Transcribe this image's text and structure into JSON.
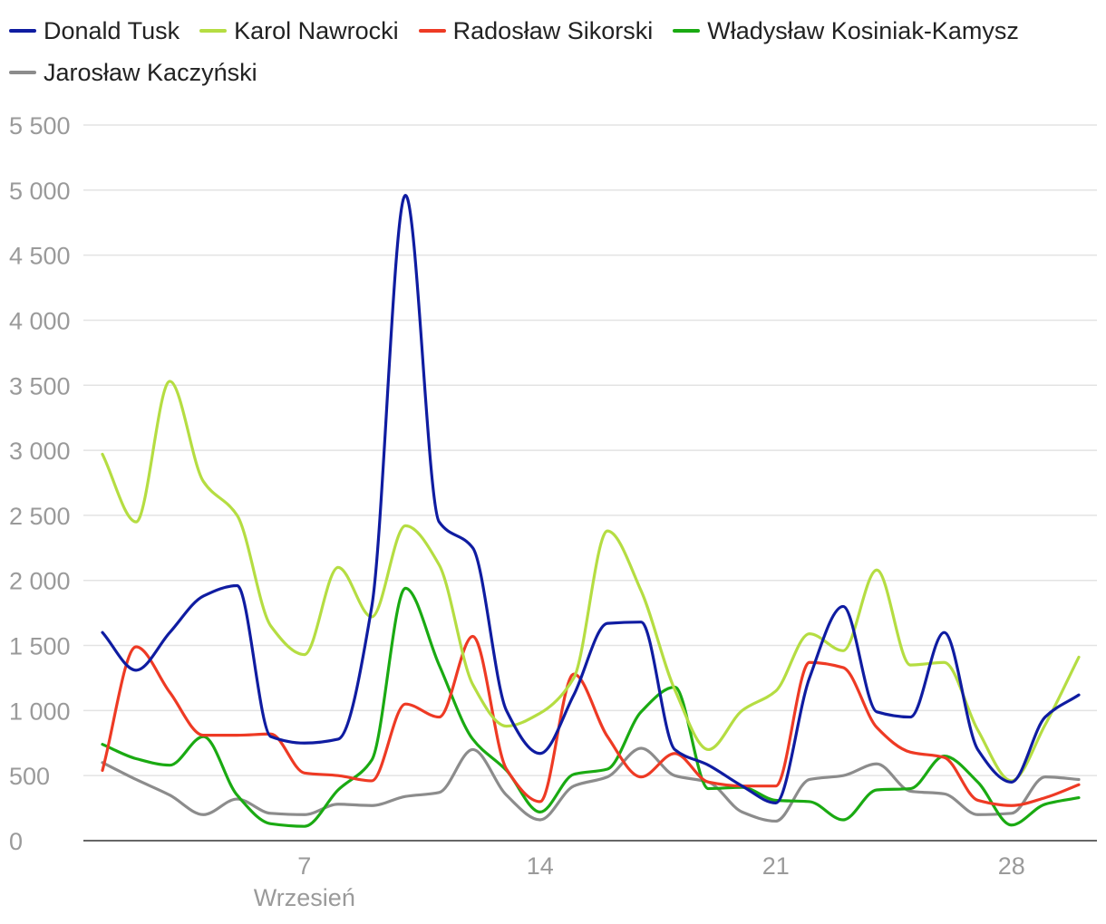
{
  "chart_data": {
    "type": "line",
    "title": "",
    "xlabel": "Wrzesień",
    "ylabel": "",
    "ylim": [
      0,
      5500
    ],
    "y_ticks": [
      0,
      500,
      1000,
      1500,
      2000,
      2500,
      3000,
      3500,
      4000,
      4500,
      5000,
      5500
    ],
    "y_tick_labels": [
      "0",
      "500",
      "1 000",
      "1 500",
      "2 000",
      "2 500",
      "3 000",
      "3 500",
      "4 000",
      "4 500",
      "5 000",
      "5 500"
    ],
    "x_range": [
      1,
      30
    ],
    "x_ticks": [
      7,
      14,
      21,
      28
    ],
    "x_tick_labels": [
      "7",
      "14",
      "21",
      "28"
    ],
    "x": [
      1,
      2,
      3,
      4,
      5,
      6,
      7,
      8,
      9,
      10,
      11,
      12,
      13,
      14,
      15,
      16,
      17,
      18,
      19,
      20,
      21,
      22,
      23,
      24,
      25,
      26,
      27,
      28,
      29,
      30
    ],
    "legend_position": "top-left",
    "grid": true,
    "series": [
      {
        "name": "Donald Tusk",
        "color": "#0f1ca1",
        "values": [
          1600,
          1310,
          1600,
          1880,
          1960,
          800,
          750,
          780,
          1800,
          4960,
          2450,
          2250,
          1000,
          670,
          1120,
          1670,
          1680,
          700,
          580,
          420,
          290,
          1250,
          1800,
          990,
          950,
          1600,
          700,
          450,
          950,
          1120
        ]
      },
      {
        "name": "Karol Nawrocki",
        "color": "#b5dd42",
        "values": [
          2970,
          2450,
          3530,
          2760,
          2500,
          1650,
          1430,
          2100,
          1720,
          2420,
          2120,
          1200,
          880,
          980,
          1250,
          2380,
          1920,
          1160,
          700,
          1000,
          1150,
          1590,
          1460,
          2080,
          1350,
          1370,
          850,
          460,
          890,
          1410
        ]
      },
      {
        "name": "Radosław Sikorski",
        "color": "#ee3a24",
        "values": [
          540,
          1490,
          1140,
          810,
          810,
          820,
          520,
          500,
          460,
          1050,
          950,
          1570,
          550,
          300,
          1280,
          800,
          490,
          670,
          450,
          420,
          420,
          1370,
          1330,
          870,
          680,
          640,
          310,
          270,
          330,
          430
        ]
      },
      {
        "name": "Władysław Kosiniak-Kamysz",
        "color": "#1aaa12",
        "values": [
          740,
          630,
          580,
          800,
          350,
          130,
          110,
          390,
          620,
          1940,
          1350,
          780,
          540,
          220,
          510,
          550,
          990,
          1180,
          400,
          410,
          310,
          300,
          160,
          390,
          400,
          650,
          450,
          120,
          280,
          330
        ]
      },
      {
        "name": "Jarosław Kaczyński",
        "color": "#8c8c8c",
        "values": [
          600,
          470,
          350,
          200,
          320,
          210,
          200,
          280,
          270,
          340,
          370,
          700,
          350,
          160,
          420,
          490,
          710,
          500,
          450,
          220,
          150,
          470,
          500,
          590,
          380,
          360,
          200,
          210,
          490,
          470
        ]
      }
    ]
  }
}
